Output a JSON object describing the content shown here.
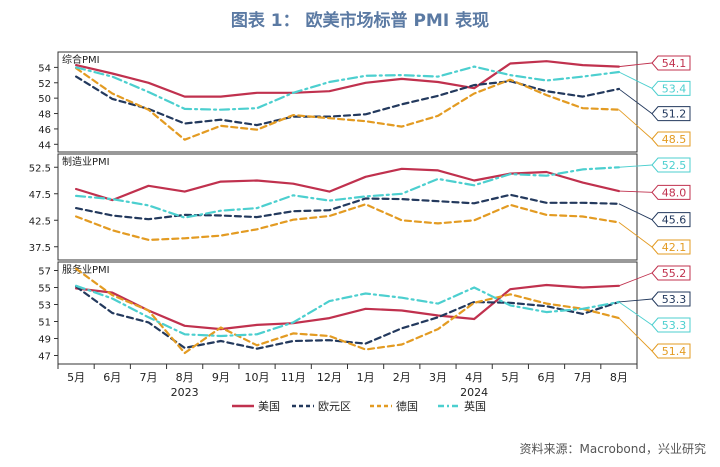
{
  "title": "图表 1：  欧美市场标普 PMI 表现",
  "source": "资料来源：Macrobond，兴业研究",
  "chart_data": {
    "type": "line",
    "categories": [
      "5月",
      "6月",
      "7月",
      "8月",
      "9月",
      "10月",
      "11月",
      "12月",
      "1月",
      "2月",
      "3月",
      "4月",
      "5月",
      "6月",
      "7月",
      "8月"
    ],
    "year_labels": [
      {
        "label": "2023",
        "at": "8月"
      },
      {
        "label": "2024",
        "at": "4月"
      }
    ],
    "series_names": [
      "美国",
      "欧元区",
      "德国",
      "英国"
    ],
    "colors": {
      "美国": "#c0314e",
      "欧元区": "#23395d",
      "德国": "#e39b22",
      "英国": "#4ccfcf"
    },
    "styles": {
      "美国": "solid",
      "欧元区": "dash",
      "德国": "dash",
      "英国": "dashdot"
    },
    "panels": [
      {
        "label": "综合PMI",
        "ylim": [
          43,
          56
        ],
        "yticks": [
          44,
          46,
          48,
          50,
          52,
          54
        ],
        "series": [
          {
            "name": "美国",
            "values": [
              54.3,
              53.2,
              52.0,
              50.2,
              50.2,
              50.7,
              50.7,
              50.9,
              52.0,
              52.5,
              52.1,
              51.3,
              54.5,
              54.8,
              54.3,
              54.1
            ]
          },
          {
            "name": "欧元区",
            "values": [
              52.8,
              49.9,
              48.6,
              46.7,
              47.2,
              46.5,
              47.6,
              47.6,
              47.9,
              49.2,
              50.3,
              51.7,
              52.2,
              50.9,
              50.2,
              51.2
            ]
          },
          {
            "name": "德国",
            "values": [
              53.9,
              50.6,
              48.5,
              44.6,
              46.4,
              45.9,
              47.8,
              47.4,
              47.0,
              46.3,
              47.7,
              50.6,
              52.4,
              50.4,
              48.7,
              48.5
            ]
          },
          {
            "name": "英国",
            "values": [
              54.0,
              52.8,
              50.8,
              48.6,
              48.5,
              48.7,
              50.7,
              52.1,
              52.9,
              53.0,
              52.8,
              54.1,
              53.0,
              52.3,
              52.8,
              53.4
            ]
          }
        ],
        "end_labels": [
          {
            "series": "美国",
            "text": "54.1"
          },
          {
            "series": "英国",
            "text": "53.4"
          },
          {
            "series": "欧元区",
            "text": "51.2"
          },
          {
            "series": "德国",
            "text": "48.5"
          }
        ]
      },
      {
        "label": "制造业PMI",
        "ylim": [
          35,
          55
        ],
        "yticks": [
          37.5,
          42.5,
          47.5,
          52.5
        ],
        "series": [
          {
            "name": "美国",
            "values": [
              48.4,
              46.3,
              49.0,
              47.9,
              49.8,
              50.0,
              49.4,
              47.9,
              50.7,
              52.2,
              51.9,
              50.0,
              51.3,
              51.6,
              49.6,
              48.0
            ]
          },
          {
            "name": "欧元区",
            "values": [
              44.8,
              43.4,
              42.7,
              43.5,
              43.4,
              43.1,
              44.2,
              44.4,
              46.6,
              46.5,
              46.1,
              45.7,
              47.3,
              45.8,
              45.8,
              45.6
            ]
          },
          {
            "name": "德国",
            "values": [
              43.2,
              40.6,
              38.8,
              39.1,
              39.6,
              40.8,
              42.6,
              43.3,
              45.5,
              42.5,
              41.9,
              42.5,
              45.4,
              43.5,
              43.2,
              42.1
            ]
          },
          {
            "name": "英国",
            "values": [
              47.1,
              46.5,
              45.3,
              43.0,
              44.3,
              44.8,
              47.2,
              46.2,
              47.0,
              47.5,
              50.3,
              49.1,
              51.2,
              50.9,
              52.1,
              52.5
            ]
          }
        ],
        "end_labels": [
          {
            "series": "英国",
            "text": "52.5"
          },
          {
            "series": "美国",
            "text": "48.0"
          },
          {
            "series": "欧元区",
            "text": "45.6"
          },
          {
            "series": "德国",
            "text": "42.1"
          }
        ]
      },
      {
        "label": "服务业PMI",
        "ylim": [
          46,
          58
        ],
        "yticks": [
          47,
          49,
          51,
          53,
          55,
          57
        ],
        "series": [
          {
            "name": "美国",
            "values": [
              54.9,
              54.4,
              52.3,
              50.5,
              50.1,
              50.6,
              50.8,
              51.4,
              52.5,
              52.3,
              51.7,
              51.3,
              54.8,
              55.3,
              55.0,
              55.2
            ]
          },
          {
            "name": "欧元区",
            "values": [
              55.1,
              52.0,
              50.9,
              47.9,
              48.7,
              47.8,
              48.7,
              48.8,
              48.4,
              50.2,
              51.5,
              53.3,
              53.2,
              52.8,
              51.9,
              53.3
            ]
          },
          {
            "name": "德国",
            "values": [
              57.2,
              54.1,
              52.3,
              47.3,
              50.3,
              48.2,
              49.6,
              49.3,
              47.7,
              48.3,
              50.1,
              53.2,
              54.2,
              53.1,
              52.5,
              51.4
            ]
          },
          {
            "name": "英国",
            "values": [
              55.2,
              53.7,
              51.5,
              49.5,
              49.3,
              49.5,
              50.9,
              53.4,
              54.3,
              53.8,
              53.1,
              55.0,
              52.9,
              52.1,
              52.5,
              53.3
            ]
          }
        ],
        "end_labels": [
          {
            "series": "美国",
            "text": "55.2"
          },
          {
            "series": "欧元区",
            "text": "53.3"
          },
          {
            "series": "英国",
            "text": "53.3"
          },
          {
            "series": "德国",
            "text": "51.4"
          }
        ]
      }
    ],
    "legend_position": "bottom-center"
  }
}
